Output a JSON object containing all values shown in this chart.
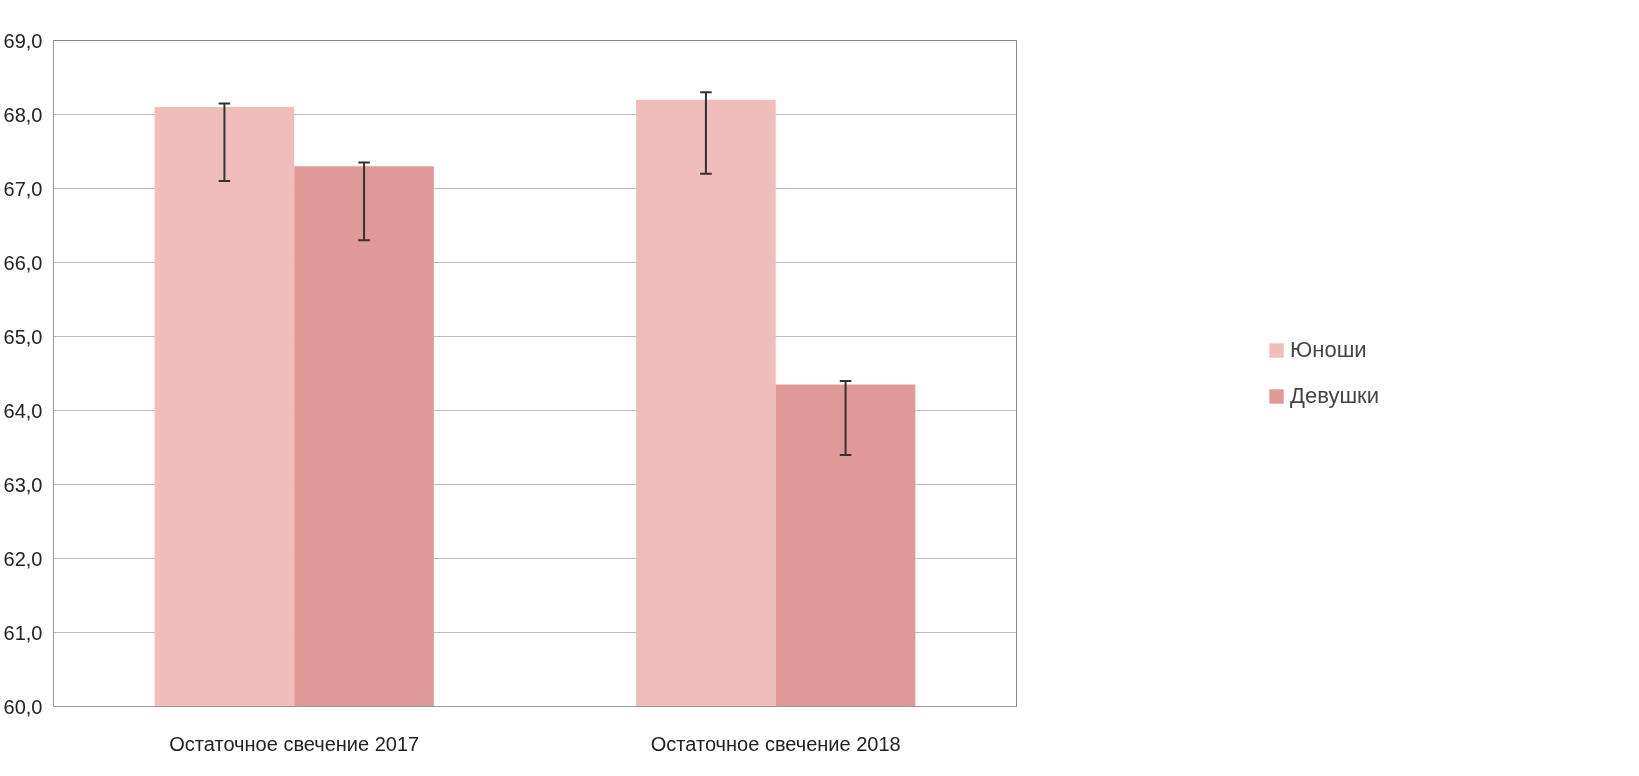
{
  "chart_data": {
    "type": "bar",
    "categories": [
      "Остаточное свечение 2017",
      "Остаточное свечение 2018"
    ],
    "series": [
      {
        "name": "Юноши",
        "color": "#f0bcbc",
        "values": [
          68.1,
          68.2
        ],
        "errors": [
          [
            67.1,
            68.15
          ],
          [
            67.2,
            68.3
          ]
        ]
      },
      {
        "name": "Девушки",
        "color": "#e09999",
        "values": [
          67.3,
          64.35
        ],
        "errors": [
          [
            66.3,
            67.35
          ],
          [
            63.4,
            64.4
          ]
        ]
      }
    ],
    "ylim": [
      60,
      69
    ],
    "yticks": [
      {
        "value": 60,
        "label": "60,0"
      },
      {
        "value": 61,
        "label": "61,0"
      },
      {
        "value": 62,
        "label": "62,0"
      },
      {
        "value": 63,
        "label": "63,0"
      },
      {
        "value": 64,
        "label": "64,0"
      },
      {
        "value": 65,
        "label": "65,0"
      },
      {
        "value": 66,
        "label": "66,0"
      },
      {
        "value": 67,
        "label": "67,0"
      },
      {
        "value": 68,
        "label": "68,0"
      },
      {
        "value": 69,
        "label": "69,0"
      }
    ],
    "grid": "y",
    "legend": "right"
  }
}
